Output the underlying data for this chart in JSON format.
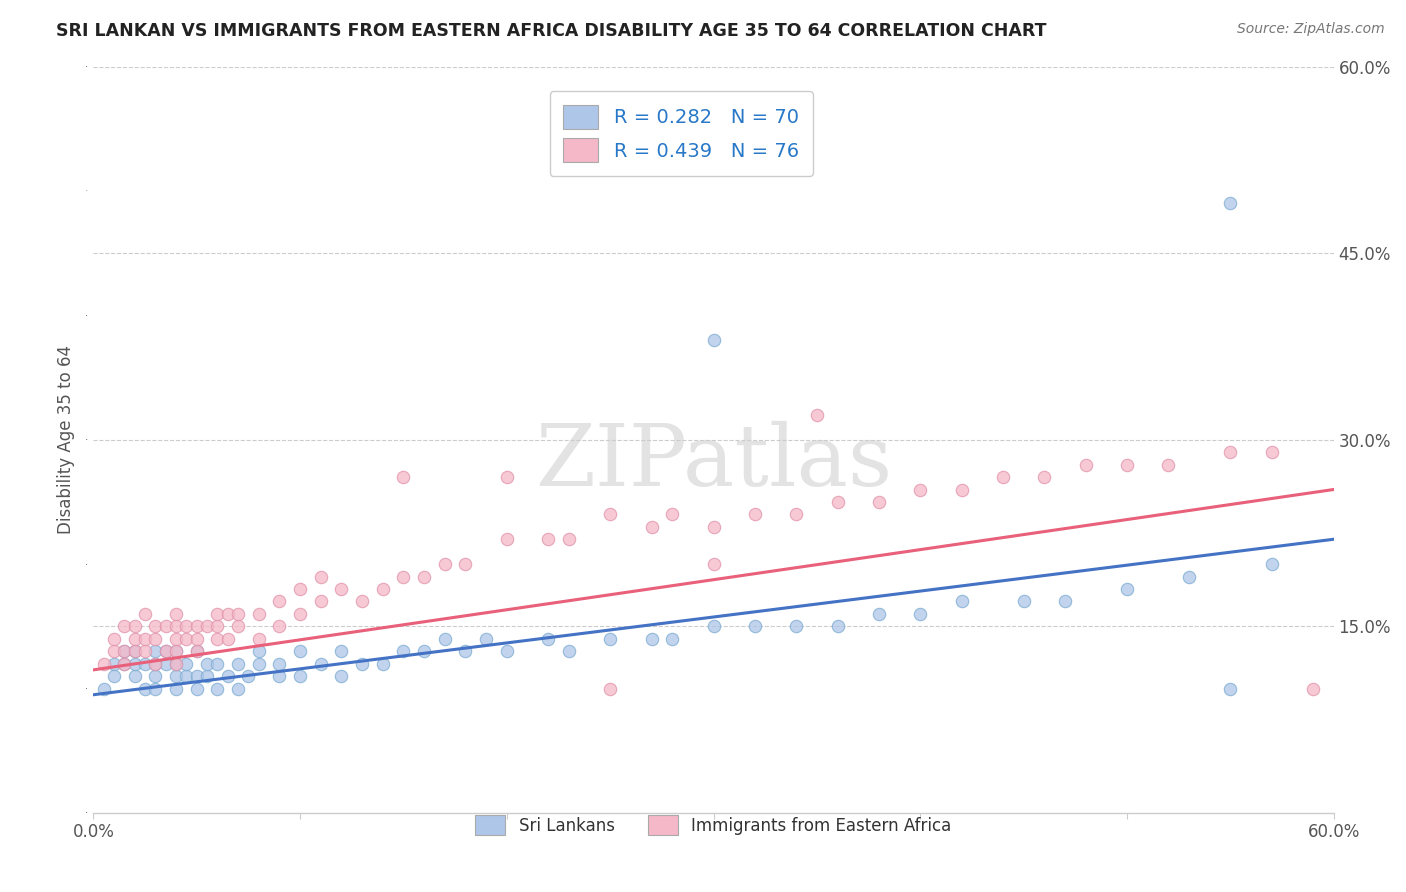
{
  "title": "SRI LANKAN VS IMMIGRANTS FROM EASTERN AFRICA DISABILITY AGE 35 TO 64 CORRELATION CHART",
  "source_text": "Source: ZipAtlas.com",
  "ylabel": "Disability Age 35 to 64",
  "watermark": "ZIPatlas",
  "xlim": [
    0.0,
    0.6
  ],
  "ylim": [
    0.0,
    0.6
  ],
  "xtick_positions": [
    0.0,
    0.1,
    0.2,
    0.3,
    0.4,
    0.5,
    0.6
  ],
  "xtick_labels": [
    "0.0%",
    "",
    "",
    "",
    "",
    "",
    "60.0%"
  ],
  "yticks_right": [
    0.15,
    0.3,
    0.45,
    0.6
  ],
  "ytick_right_labels": [
    "15.0%",
    "30.0%",
    "45.0%",
    "60.0%"
  ],
  "series1_name": "Sri Lankans",
  "series1_color": "#aec6e8",
  "series1_edge_color": "#7aaad0",
  "series1_line_color": "#4472c4",
  "series1_R": 0.282,
  "series1_N": 70,
  "series2_name": "Immigrants from Eastern Africa",
  "series2_color": "#f4b8c8",
  "series2_edge_color": "#e090a8",
  "series2_line_color": "#e8607a",
  "series2_R": 0.439,
  "series2_N": 76,
  "legend_text_color": "#2878c8",
  "background_color": "#ffffff",
  "grid_color": "#cccccc",
  "series1_x": [
    0.005,
    0.01,
    0.01,
    0.015,
    0.015,
    0.02,
    0.02,
    0.02,
    0.025,
    0.025,
    0.03,
    0.03,
    0.03,
    0.03,
    0.035,
    0.035,
    0.04,
    0.04,
    0.04,
    0.04,
    0.045,
    0.045,
    0.05,
    0.05,
    0.05,
    0.055,
    0.055,
    0.06,
    0.06,
    0.065,
    0.07,
    0.07,
    0.075,
    0.08,
    0.08,
    0.09,
    0.09,
    0.1,
    0.1,
    0.11,
    0.12,
    0.12,
    0.13,
    0.14,
    0.15,
    0.16,
    0.17,
    0.18,
    0.19,
    0.2,
    0.22,
    0.23,
    0.25,
    0.27,
    0.28,
    0.3,
    0.32,
    0.34,
    0.36,
    0.38,
    0.4,
    0.42,
    0.45,
    0.47,
    0.5,
    0.53,
    0.55,
    0.57,
    0.3,
    0.55
  ],
  "series1_y": [
    0.1,
    0.12,
    0.11,
    0.12,
    0.13,
    0.11,
    0.12,
    0.13,
    0.1,
    0.12,
    0.11,
    0.12,
    0.13,
    0.1,
    0.12,
    0.13,
    0.11,
    0.12,
    0.1,
    0.13,
    0.11,
    0.12,
    0.1,
    0.11,
    0.13,
    0.11,
    0.12,
    0.1,
    0.12,
    0.11,
    0.1,
    0.12,
    0.11,
    0.12,
    0.13,
    0.11,
    0.12,
    0.11,
    0.13,
    0.12,
    0.11,
    0.13,
    0.12,
    0.12,
    0.13,
    0.13,
    0.14,
    0.13,
    0.14,
    0.13,
    0.14,
    0.13,
    0.14,
    0.14,
    0.14,
    0.15,
    0.15,
    0.15,
    0.15,
    0.16,
    0.16,
    0.17,
    0.17,
    0.17,
    0.18,
    0.19,
    0.1,
    0.2,
    0.38,
    0.49
  ],
  "series2_x": [
    0.005,
    0.01,
    0.01,
    0.015,
    0.015,
    0.015,
    0.02,
    0.02,
    0.02,
    0.025,
    0.025,
    0.025,
    0.03,
    0.03,
    0.03,
    0.035,
    0.035,
    0.04,
    0.04,
    0.04,
    0.04,
    0.04,
    0.045,
    0.045,
    0.05,
    0.05,
    0.05,
    0.055,
    0.06,
    0.06,
    0.06,
    0.065,
    0.065,
    0.07,
    0.07,
    0.08,
    0.08,
    0.09,
    0.09,
    0.1,
    0.1,
    0.11,
    0.11,
    0.12,
    0.13,
    0.14,
    0.15,
    0.16,
    0.17,
    0.18,
    0.2,
    0.22,
    0.23,
    0.25,
    0.27,
    0.28,
    0.3,
    0.32,
    0.34,
    0.36,
    0.38,
    0.4,
    0.42,
    0.44,
    0.46,
    0.48,
    0.5,
    0.52,
    0.55,
    0.57,
    0.59,
    0.2,
    0.35,
    0.25,
    0.3,
    0.15
  ],
  "series2_y": [
    0.12,
    0.13,
    0.14,
    0.12,
    0.13,
    0.15,
    0.13,
    0.14,
    0.15,
    0.13,
    0.14,
    0.16,
    0.12,
    0.14,
    0.15,
    0.13,
    0.15,
    0.13,
    0.14,
    0.15,
    0.16,
    0.12,
    0.14,
    0.15,
    0.13,
    0.15,
    0.14,
    0.15,
    0.14,
    0.15,
    0.16,
    0.14,
    0.16,
    0.15,
    0.16,
    0.14,
    0.16,
    0.15,
    0.17,
    0.16,
    0.18,
    0.17,
    0.19,
    0.18,
    0.17,
    0.18,
    0.19,
    0.19,
    0.2,
    0.2,
    0.22,
    0.22,
    0.22,
    0.24,
    0.23,
    0.24,
    0.23,
    0.24,
    0.24,
    0.25,
    0.25,
    0.26,
    0.26,
    0.27,
    0.27,
    0.28,
    0.28,
    0.28,
    0.29,
    0.29,
    0.1,
    0.27,
    0.32,
    0.1,
    0.2,
    0.27
  ],
  "trend1_x0": 0.0,
  "trend1_y0": 0.095,
  "trend1_x1": 0.6,
  "trend1_y1": 0.22,
  "trend2_x0": 0.0,
  "trend2_y0": 0.115,
  "trend2_x1": 0.6,
  "trend2_y1": 0.26
}
